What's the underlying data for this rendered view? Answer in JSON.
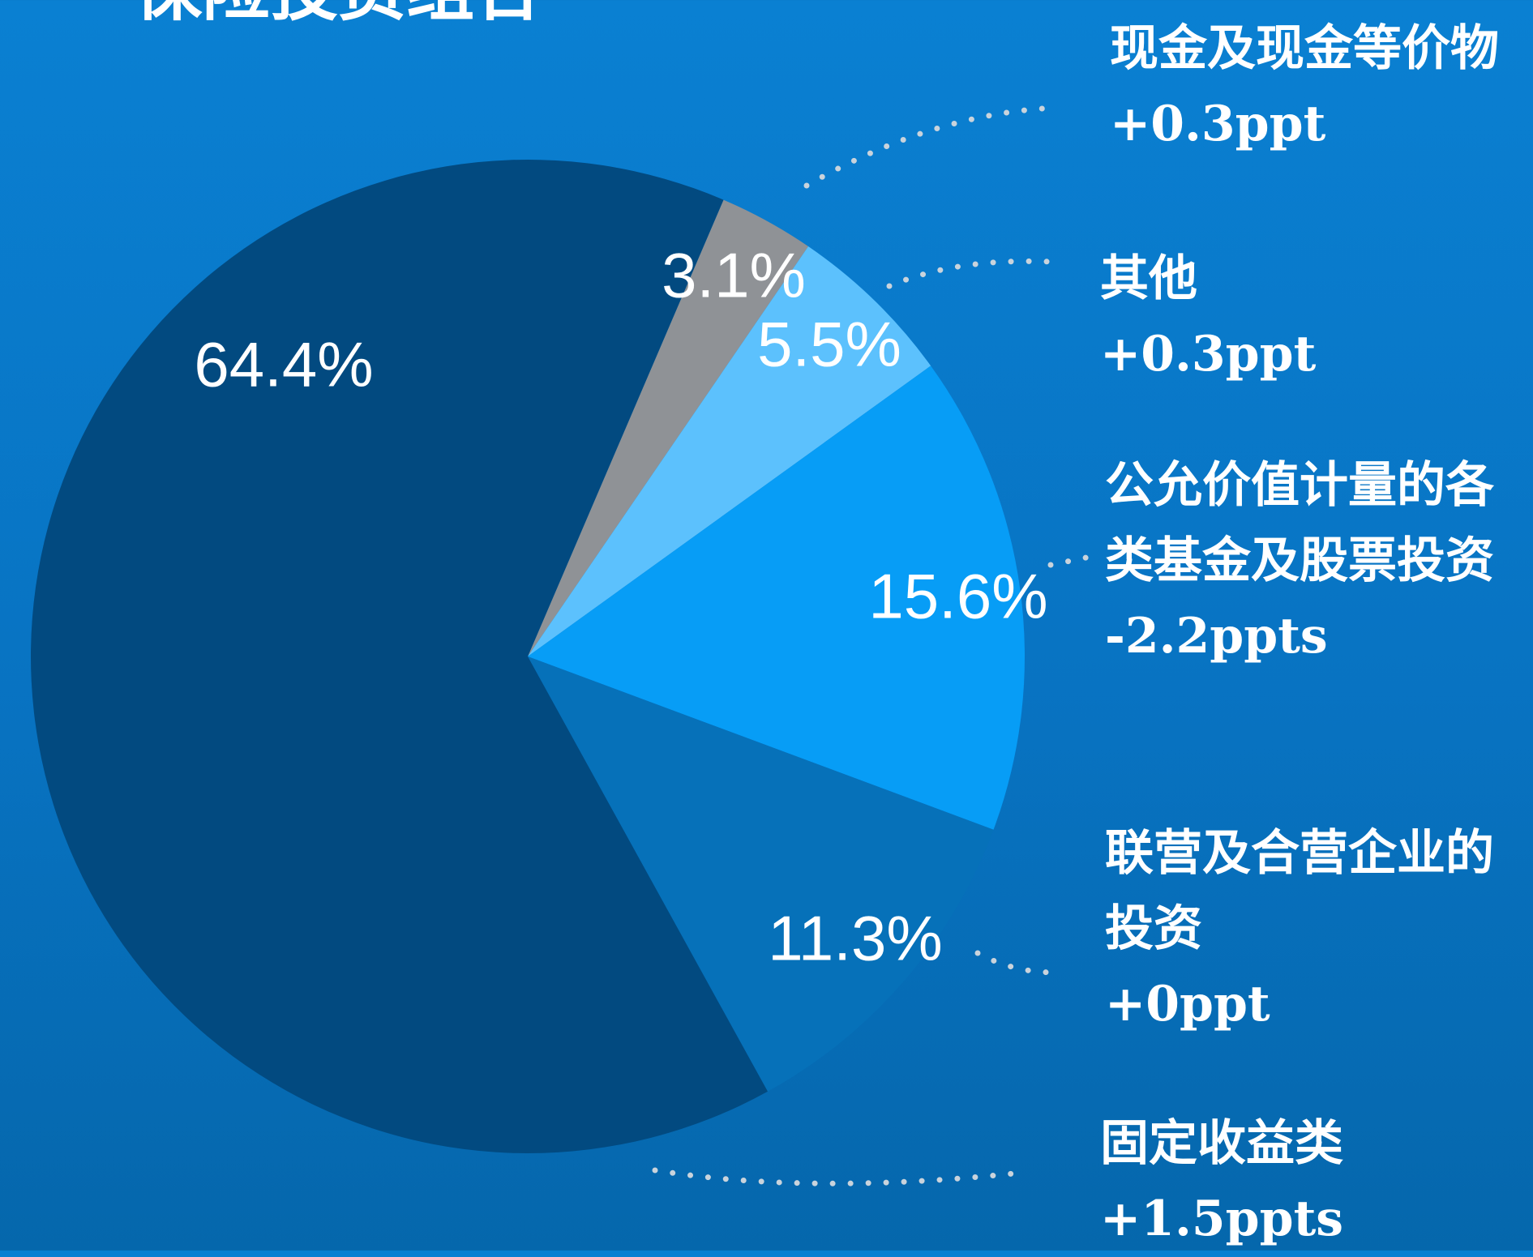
{
  "chart_data": {
    "type": "pie",
    "title": "保险投资组合",
    "categories": [
      "现金及现金等价物",
      "其他",
      "公允价值计量的各类基金及股票投资",
      "联营及合营企业的投资",
      "固定收益类"
    ],
    "values": [
      3.1,
      5.5,
      15.6,
      11.3,
      64.4
    ],
    "value_labels": [
      "3.1%",
      "5.5%",
      "15.6%",
      "11.3%",
      "64.4%"
    ],
    "annotations": [
      "+0.3ppt",
      "+0.3ppt",
      "-2.2ppts",
      "+0ppt",
      "+1.5ppts"
    ],
    "colors": [
      "#8f9296",
      "#5cc1fd",
      "#079df6",
      "#0671b9",
      "#024a80"
    ]
  }
}
